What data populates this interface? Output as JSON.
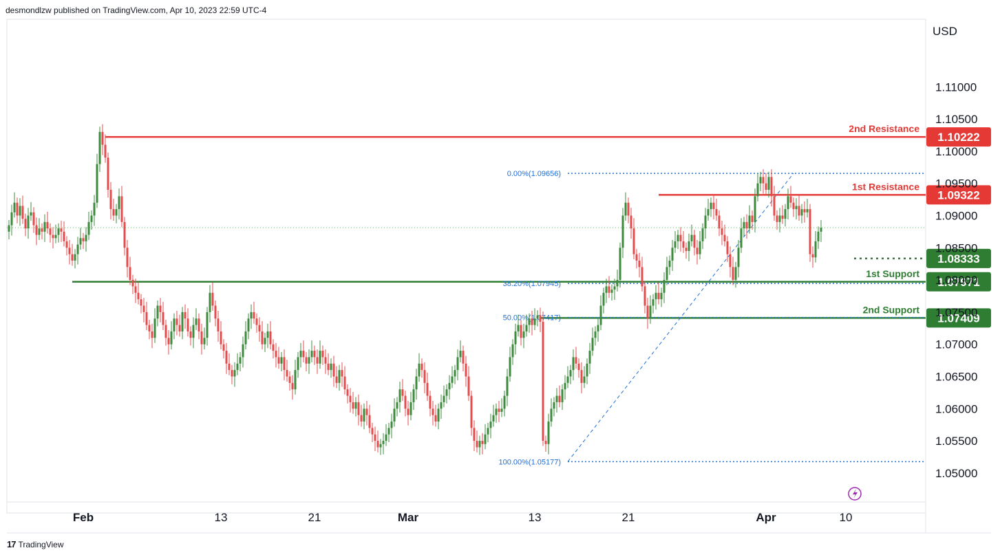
{
  "header": {
    "publisher": "desmondlzw published on TradingView.com, Apr 10, 2023 22:59 UTC-4"
  },
  "footer": {
    "brand": "TradingView",
    "logo": "tradingview-logo"
  },
  "axis": {
    "currency": "USD",
    "lightning_icon": "lightning-icon"
  },
  "colors": {
    "up": "#3d8b3d",
    "down": "#e24c4c",
    "resistance": "#e53935",
    "support": "#2e7d32",
    "fib": "#1e6fd9"
  },
  "chart_data": {
    "type": "candlestick",
    "title": "",
    "ylabel": "USD",
    "ylim": [
      1.0455,
      1.1205
    ],
    "yticks": [
      1.05,
      1.055,
      1.06,
      1.065,
      1.07,
      1.075,
      1.08,
      1.085,
      1.09,
      1.095,
      1.1,
      1.105,
      1.11
    ],
    "ytick_labels": [
      "1.05000",
      "1.05500",
      "1.06000",
      "1.06500",
      "1.07000",
      "1.07500",
      "1.08000",
      "1.08500",
      "1.09000",
      "1.09500",
      "1.10000",
      "1.10500",
      "1.11000"
    ],
    "xticks": [
      {
        "label": "Feb",
        "bar": 27,
        "bold": true
      },
      {
        "label": "13",
        "bar": 77,
        "bold": false
      },
      {
        "label": "21",
        "bar": 111,
        "bold": false
      },
      {
        "label": "Mar",
        "bar": 145,
        "bold": true
      },
      {
        "label": "13",
        "bar": 191,
        "bold": false
      },
      {
        "label": "21",
        "bar": 225,
        "bold": false
      },
      {
        "label": "Apr",
        "bar": 275,
        "bold": true
      },
      {
        "label": "10",
        "bar": 304,
        "bold": false
      }
    ],
    "last_price": 1.0881,
    "levels": [
      {
        "name": "2nd Resistance",
        "value": 1.10222,
        "label": "1.10222",
        "kind": "resistance",
        "start_bar": 35
      },
      {
        "name": "1st Resistance",
        "value": 1.09322,
        "label": "1.09322",
        "kind": "resistance",
        "start_bar": 236
      },
      {
        "name": "",
        "value": 1.08333,
        "label": "1.08333",
        "kind": "support-dotted",
        "start_bar": 307
      },
      {
        "name": "1st Support",
        "value": 1.07971,
        "label": "1.07971",
        "kind": "support",
        "start_bar": 23
      },
      {
        "name": "2nd Support",
        "value": 1.07409,
        "label": "1.07409",
        "kind": "support",
        "start_bar": 193
      }
    ],
    "fib": [
      {
        "label": "0.00%(1.09656)",
        "value": 1.09656
      },
      {
        "label": "38.20%(1.07945)",
        "value": 1.07945
      },
      {
        "label": "50.00%(1.07417)",
        "value": 1.07417
      },
      {
        "label": "100.00%(1.05177)",
        "value": 1.05177
      }
    ],
    "fib_start_bar": 203,
    "fib_low_bar": 203,
    "fib_high_bar": 285,
    "closes": [
      1.0885,
      1.0905,
      1.092,
      1.09,
      1.0915,
      1.0895,
      1.088,
      1.09,
      1.0905,
      1.0885,
      1.087,
      1.088,
      1.0875,
      1.089,
      1.088,
      1.087,
      1.0865,
      1.087,
      1.088,
      1.0875,
      1.086,
      1.085,
      1.084,
      1.083,
      1.084,
      1.0855,
      1.0865,
      1.086,
      1.087,
      1.089,
      1.09,
      1.092,
      1.098,
      1.103,
      1.101,
      1.099,
      1.094,
      1.091,
      1.09,
      1.091,
      1.093,
      1.089,
      1.085,
      1.082,
      1.08,
      1.079,
      1.078,
      1.077,
      1.076,
      1.075,
      1.073,
      1.072,
      1.071,
      1.074,
      1.076,
      1.075,
      1.073,
      1.071,
      1.07,
      1.072,
      1.074,
      1.073,
      1.072,
      1.075,
      1.074,
      1.072,
      1.071,
      1.073,
      1.074,
      1.072,
      1.07,
      1.071,
      1.075,
      1.078,
      1.076,
      1.074,
      1.072,
      1.07,
      1.069,
      1.067,
      1.066,
      1.065,
      1.066,
      1.067,
      1.068,
      1.07,
      1.072,
      1.074,
      1.075,
      1.074,
      1.073,
      1.072,
      1.07,
      1.071,
      1.072,
      1.07,
      1.069,
      1.068,
      1.067,
      1.068,
      1.066,
      1.065,
      1.064,
      1.063,
      1.066,
      1.068,
      1.069,
      1.068,
      1.067,
      1.068,
      1.069,
      1.068,
      1.067,
      1.069,
      1.068,
      1.067,
      1.066,
      1.067,
      1.065,
      1.064,
      1.066,
      1.065,
      1.063,
      1.062,
      1.061,
      1.06,
      1.061,
      1.059,
      1.058,
      1.06,
      1.059,
      1.057,
      1.056,
      1.055,
      1.054,
      1.0545,
      1.055,
      1.056,
      1.057,
      1.058,
      1.06,
      1.061,
      1.063,
      1.062,
      1.06,
      1.059,
      1.061,
      1.063,
      1.065,
      1.067,
      1.066,
      1.064,
      1.062,
      1.06,
      1.059,
      1.058,
      1.06,
      1.061,
      1.062,
      1.063,
      1.064,
      1.065,
      1.066,
      1.068,
      1.069,
      1.067,
      1.065,
      1.062,
      1.057,
      1.055,
      1.054,
      1.055,
      1.0545,
      1.056,
      1.057,
      1.058,
      1.059,
      1.06,
      1.0595,
      1.06,
      1.062,
      1.065,
      1.068,
      1.07,
      1.072,
      1.073,
      1.071,
      1.072,
      1.073,
      1.074,
      1.073,
      1.074,
      1.0745,
      1.0735,
      1.055,
      1.0545,
      1.058,
      1.06,
      1.061,
      1.062,
      1.061,
      1.063,
      1.064,
      1.065,
      1.066,
      1.068,
      1.067,
      1.066,
      1.064,
      1.065,
      1.067,
      1.069,
      1.071,
      1.072,
      1.073,
      1.076,
      1.078,
      1.079,
      1.078,
      1.0785,
      1.079,
      1.08,
      1.085,
      1.09,
      1.092,
      1.09,
      1.088,
      1.084,
      1.083,
      1.082,
      1.079,
      1.076,
      1.074,
      1.076,
      1.077,
      1.078,
      1.077,
      1.078,
      1.08,
      1.082,
      1.083,
      1.085,
      1.086,
      1.087,
      1.086,
      1.085,
      1.0845,
      1.086,
      1.087,
      1.085,
      1.084,
      1.086,
      1.088,
      1.09,
      1.091,
      1.092,
      1.091,
      1.09,
      1.088,
      1.087,
      1.086,
      1.084,
      1.082,
      1.08,
      1.082,
      1.085,
      1.088,
      1.089,
      1.088,
      1.09,
      1.089,
      1.093,
      1.095,
      1.096,
      1.095,
      1.094,
      1.096,
      1.093,
      1.09,
      1.089,
      1.09,
      1.0895,
      1.091,
      1.093,
      1.092,
      1.091,
      1.0915,
      1.09,
      1.091,
      1.0905,
      1.091,
      1.084,
      1.0835,
      1.086,
      1.0875,
      1.0881
    ]
  }
}
